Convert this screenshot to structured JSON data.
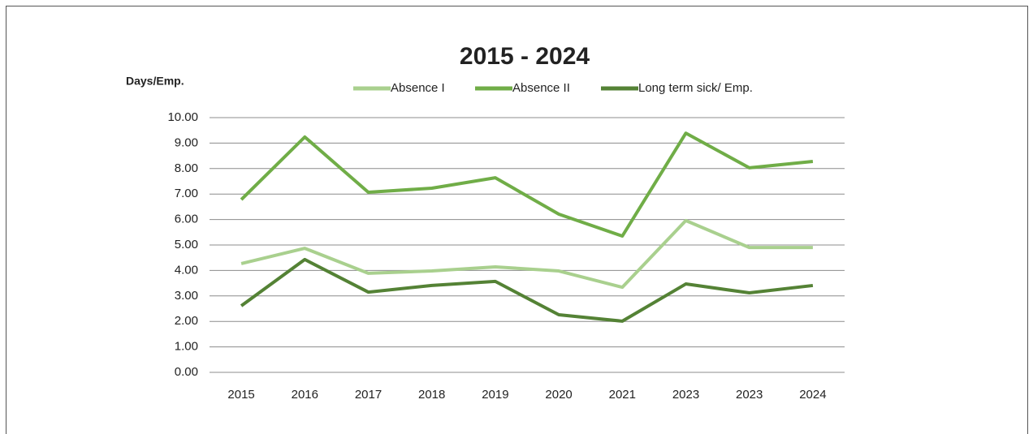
{
  "chart_data": {
    "type": "line",
    "title": "2015 - 2024",
    "y_label": "Days/Emp.",
    "categories": [
      "2015",
      "2016",
      "2017",
      "2018",
      "2019",
      "2020",
      "2021",
      "2023",
      "2023",
      "2024"
    ],
    "series": [
      {
        "name": "Absence I",
        "color": "#a9d08e",
        "values": [
          4.27,
          4.87,
          3.89,
          3.98,
          4.14,
          3.98,
          3.34,
          5.96,
          4.9,
          4.9
        ]
      },
      {
        "name": "Absence II",
        "color": "#70ad47",
        "values": [
          6.78,
          9.24,
          7.07,
          7.23,
          7.64,
          6.21,
          5.35,
          9.39,
          8.03,
          8.28
        ]
      },
      {
        "name": "Long term sick/ Emp.",
        "color": "#548235",
        "values": [
          2.61,
          4.43,
          3.15,
          3.41,
          3.57,
          2.26,
          2.01,
          3.47,
          3.12,
          3.41
        ]
      }
    ],
    "ylim": [
      0,
      10
    ],
    "yticks": [
      {
        "value": 0,
        "label": "0.00"
      },
      {
        "value": 1,
        "label": "1.00"
      },
      {
        "value": 2,
        "label": "2.00"
      },
      {
        "value": 3,
        "label": "3.00"
      },
      {
        "value": 4,
        "label": "4.00"
      },
      {
        "value": 5,
        "label": "5.00"
      },
      {
        "value": 6,
        "label": "6.00"
      },
      {
        "value": 7,
        "label": "7.00"
      },
      {
        "value": 8,
        "label": "8.00"
      },
      {
        "value": 9,
        "label": "9.00"
      },
      {
        "value": 10,
        "label": "10.00"
      }
    ],
    "grid": true,
    "legend": "top"
  }
}
